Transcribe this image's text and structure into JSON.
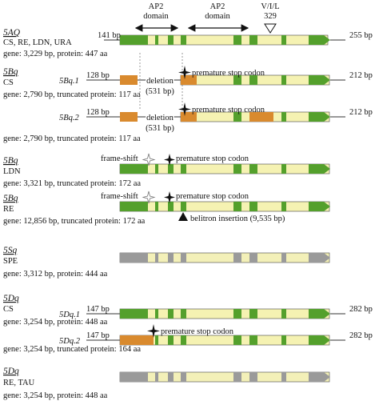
{
  "colors": {
    "exon": "#54a02c",
    "exon_dark": "#3a7a1c",
    "intron": "#f5f2b2",
    "utr_orange": "#d98a2e",
    "grey_exon": "#9a9a9a",
    "grey_intron": "#f3f0b8",
    "line": "#333333"
  },
  "domains": {
    "ap2_1": "AP2",
    "ap2_1_sub": "domain",
    "ap2_2": "AP2",
    "ap2_2_sub": "domain",
    "vil": "V/I/L",
    "vil_pos": "329"
  },
  "groups": [
    {
      "name": "5AQ",
      "lines": [
        "CS, RE, LDN, URA"
      ],
      "gene_info": "gene: 3,229 bp, protein: 447 aa"
    },
    {
      "name": "5Bq",
      "lines": [
        "CS"
      ],
      "gene_info": "gene: 2,790 bp, truncated protein: 117 aa"
    },
    {
      "name": "",
      "lines": [],
      "gene_info": "gene: 2,790 bp, truncated protein: 117 aa"
    },
    {
      "name": "5Bq",
      "lines": [
        "LDN"
      ],
      "gene_info": "gene: 3,321 bp, truncated protein: 172 aa"
    },
    {
      "name": "5Bq",
      "lines": [
        "RE"
      ],
      "gene_info": "gene: 12,856 bp, truncated protein: 172 aa"
    },
    {
      "name": "5Sq",
      "lines": [
        "SPE"
      ],
      "gene_info": "gene: 3,312 bp, protein: 444 aa"
    },
    {
      "name": "5Dq",
      "lines": [
        "CS"
      ],
      "gene_info": "gene: 3,254 bp, protein: 448 aa"
    },
    {
      "name": "",
      "lines": [],
      "gene_info": "gene: 3,254 bp, truncated protein: 164 aa"
    },
    {
      "name": "5Dq",
      "lines": [
        "RE, TAU"
      ],
      "gene_info": "gene: 3,254 bp, protein: 448 aa"
    }
  ],
  "labels": {
    "r0_left": "141 bp",
    "r0_right": "255 bp",
    "r1_id": "5Bq.1",
    "r1_left": "128 bp",
    "r1_right": "212 bp",
    "r1_deletion": "deletion",
    "r1_deletion_size": "(531 bp)",
    "r1_stop": "premature stop codon",
    "r2_id": "5Bq.2",
    "r2_left": "128 bp",
    "r2_right": "212 bp",
    "r2_deletion": "deletion",
    "r2_deletion_size": "(531 bp)",
    "r2_stop": "premature stop codon",
    "r3_frameshift": "frame-shift",
    "r3_stop": "premature stop codon",
    "r4_frameshift": "frame-shift",
    "r4_stop": "premature stop codon",
    "r4_insertion": "belitron insertion (9,535 bp)",
    "r6_id": "5Dq.1",
    "r6_left": "147 bp",
    "r6_right": "282 bp",
    "r7_id": "5Dq.2",
    "r7_left": "147 bp",
    "r7_right": "282 bp",
    "r7_stop": "premature stop codon"
  }
}
